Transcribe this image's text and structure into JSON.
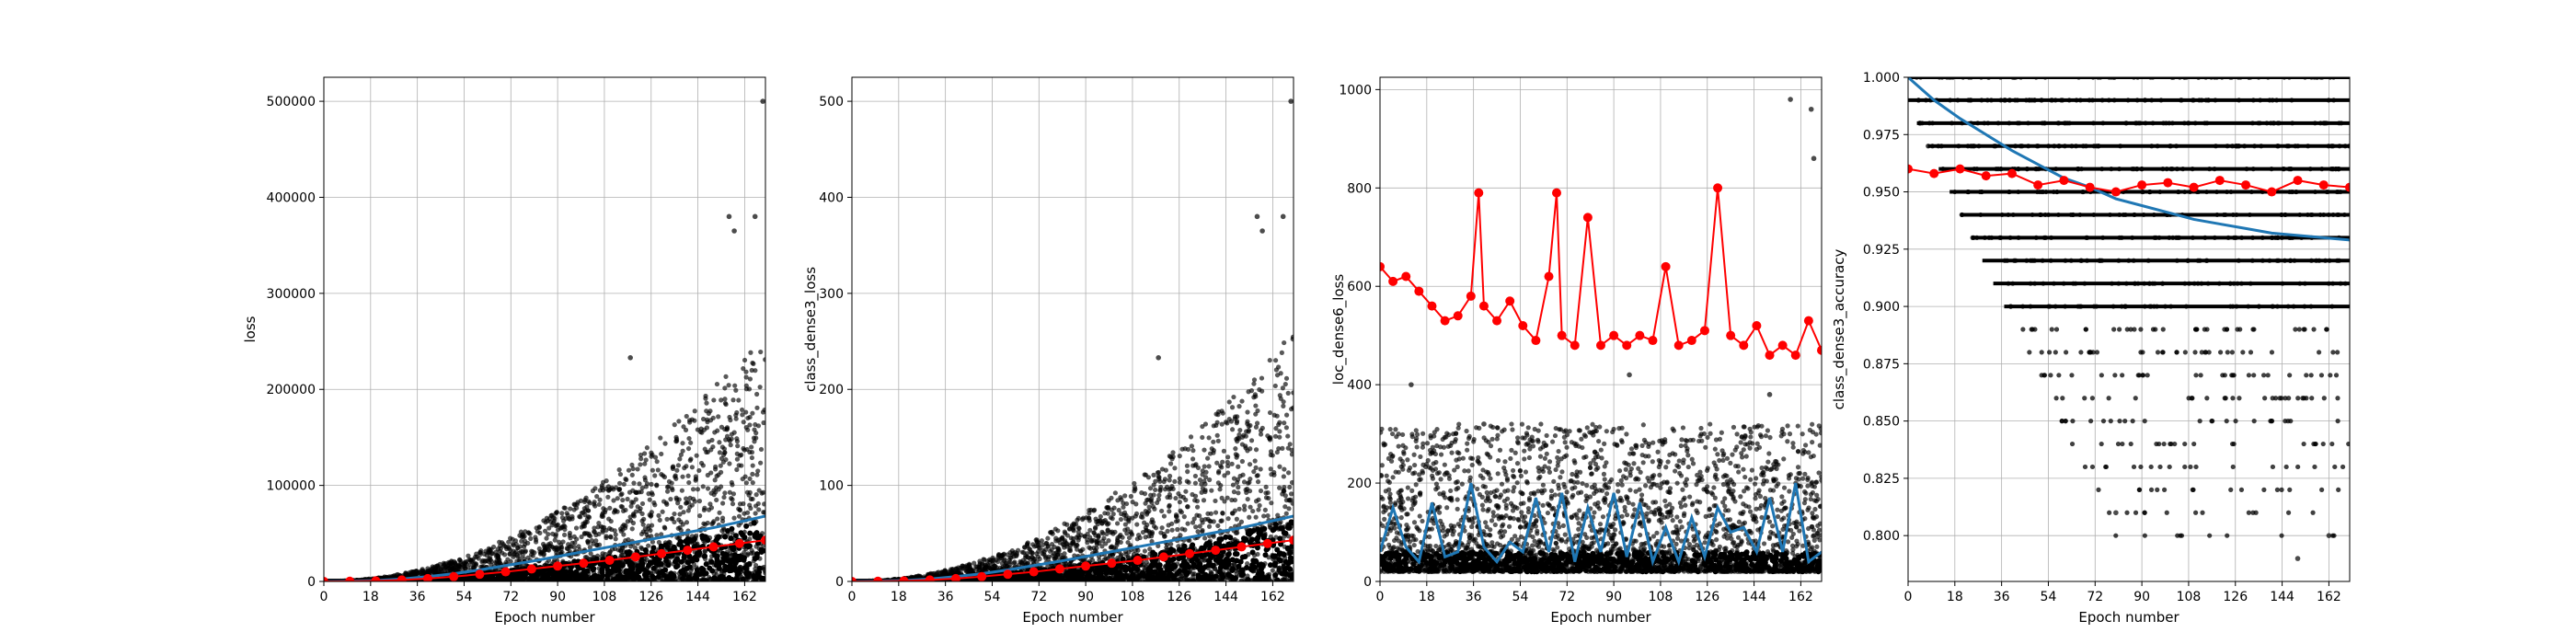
{
  "chart_data": [
    {
      "type": "scatter",
      "id": "loss",
      "xlabel": "Epoch number",
      "ylabel": "loss",
      "xlim": [
        0,
        170
      ],
      "ylim": [
        0,
        525000
      ],
      "xticks": [
        0,
        18,
        36,
        54,
        72,
        90,
        108,
        126,
        144,
        162
      ],
      "yticks": [
        0,
        100000,
        200000,
        300000,
        400000,
        500000
      ],
      "ytick_labels": [
        "0",
        "100000",
        "200000",
        "300000",
        "400000",
        "500000"
      ],
      "grid": true,
      "colors": {
        "scatter": "#000000",
        "blue": "#1f77b4",
        "red": "#ff0000"
      },
      "scatter_model": {
        "form": "quadratic",
        "min": 0,
        "max_end": 260000,
        "epochs": 170
      },
      "outliers": [
        [
          118,
          233000
        ],
        [
          156,
          380000
        ],
        [
          158,
          365000
        ],
        [
          166,
          380000
        ],
        [
          169,
          500000
        ]
      ],
      "series": [
        {
          "color": "#1f77b4",
          "x": [
            0,
            10,
            20,
            30,
            40,
            50,
            60,
            70,
            80,
            90,
            100,
            110,
            120,
            130,
            140,
            150,
            160,
            170
          ],
          "values": [
            0,
            300,
            1000,
            2500,
            5000,
            8000,
            12000,
            16500,
            21000,
            26000,
            31000,
            36000,
            41000,
            46000,
            51000,
            56000,
            62000,
            68000
          ]
        },
        {
          "color": "#ff0000",
          "x": [
            0,
            10,
            20,
            30,
            40,
            50,
            60,
            70,
            80,
            90,
            100,
            110,
            120,
            130,
            140,
            150,
            160,
            170
          ],
          "values": [
            0,
            200,
            600,
            1500,
            3000,
            5000,
            7500,
            10000,
            13000,
            16000,
            19000,
            22000,
            25500,
            29000,
            32500,
            36000,
            39500,
            43000
          ]
        }
      ]
    },
    {
      "type": "scatter",
      "id": "class_dense3_loss",
      "xlabel": "Epoch number",
      "ylabel": "class_dense3_loss",
      "xlim": [
        0,
        170
      ],
      "ylim": [
        0,
        525
      ],
      "xticks": [
        0,
        18,
        36,
        54,
        72,
        90,
        108,
        126,
        144,
        162
      ],
      "yticks": [
        0,
        100,
        200,
        300,
        400,
        500
      ],
      "ytick_labels": [
        "0",
        "100",
        "200",
        "300",
        "400",
        "500"
      ],
      "grid": true,
      "colors": {
        "scatter": "#000000",
        "blue": "#1f77b4",
        "red": "#ff0000"
      },
      "scatter_model": {
        "form": "quadratic",
        "min": 0,
        "max_end": 260,
        "epochs": 170
      },
      "outliers": [
        [
          118,
          233
        ],
        [
          156,
          380
        ],
        [
          158,
          365
        ],
        [
          166,
          380
        ],
        [
          169,
          500
        ]
      ],
      "series": [
        {
          "color": "#1f77b4",
          "x": [
            0,
            10,
            20,
            30,
            40,
            50,
            60,
            70,
            80,
            90,
            100,
            110,
            120,
            130,
            140,
            150,
            160,
            170
          ],
          "values": [
            0,
            0.3,
            1,
            2.5,
            5,
            8,
            12,
            16.5,
            21,
            26,
            31,
            36,
            41,
            46,
            51,
            56,
            62,
            68
          ]
        },
        {
          "color": "#ff0000",
          "x": [
            0,
            10,
            20,
            30,
            40,
            50,
            60,
            70,
            80,
            90,
            100,
            110,
            120,
            130,
            140,
            150,
            160,
            170
          ],
          "values": [
            0,
            0.2,
            0.6,
            1.5,
            3,
            5,
            7.5,
            10,
            13,
            16,
            19,
            22,
            25.5,
            29,
            32.5,
            36,
            39.5,
            43
          ]
        }
      ]
    },
    {
      "type": "scatter",
      "id": "loc_dense6_loss",
      "xlabel": "Epoch number",
      "ylabel": "loc_dense6_loss",
      "xlim": [
        0,
        170
      ],
      "ylim": [
        0,
        1025
      ],
      "xticks": [
        0,
        18,
        36,
        54,
        72,
        90,
        108,
        126,
        144,
        162
      ],
      "yticks": [
        0,
        200,
        400,
        600,
        800,
        1000
      ],
      "ytick_labels": [
        "0",
        "200",
        "400",
        "600",
        "800",
        "1000"
      ],
      "grid": true,
      "colors": {
        "scatter": "#000000",
        "blue": "#1f77b4",
        "red": "#ff0000"
      },
      "scatter_model": {
        "form": "band",
        "min": 20,
        "max_end": 320,
        "epochs": 170
      },
      "outliers": [
        [
          12,
          400
        ],
        [
          40,
          320
        ],
        [
          96,
          420
        ],
        [
          150,
          380
        ],
        [
          158,
          980
        ],
        [
          166,
          960
        ],
        [
          167,
          860
        ]
      ],
      "series": [
        {
          "color": "#1f77b4",
          "x": [
            0,
            5,
            10,
            15,
            20,
            25,
            30,
            35,
            40,
            45,
            50,
            55,
            60,
            65,
            70,
            75,
            80,
            85,
            90,
            95,
            100,
            105,
            110,
            115,
            120,
            125,
            130,
            135,
            140,
            145,
            150,
            155,
            160,
            165,
            170
          ],
          "values": [
            60,
            150,
            70,
            40,
            160,
            50,
            60,
            200,
            70,
            40,
            80,
            60,
            170,
            60,
            180,
            40,
            150,
            60,
            180,
            50,
            160,
            40,
            110,
            40,
            130,
            50,
            150,
            100,
            110,
            60,
            170,
            60,
            200,
            40,
            60
          ]
        },
        {
          "color": "#ff0000",
          "x": [
            0,
            5,
            10,
            15,
            20,
            25,
            30,
            35,
            38,
            40,
            45,
            50,
            55,
            60,
            65,
            68,
            70,
            75,
            80,
            85,
            90,
            95,
            100,
            105,
            110,
            115,
            120,
            125,
            130,
            135,
            140,
            145,
            150,
            155,
            160,
            165,
            170
          ],
          "values": [
            640,
            610,
            620,
            590,
            560,
            530,
            540,
            580,
            790,
            560,
            530,
            570,
            520,
            490,
            620,
            790,
            500,
            480,
            740,
            480,
            500,
            480,
            500,
            490,
            640,
            480,
            490,
            510,
            800,
            500,
            480,
            520,
            460,
            480,
            460,
            530,
            470
          ]
        }
      ]
    },
    {
      "type": "scatter",
      "id": "class_dense3_accuracy",
      "xlabel": "Epoch number",
      "ylabel": "class_dense3_accuracy",
      "xlim": [
        0,
        170
      ],
      "ylim": [
        0.78,
        1.0
      ],
      "xticks": [
        0,
        18,
        36,
        54,
        72,
        90,
        108,
        126,
        144,
        162
      ],
      "yticks": [
        0.8,
        0.825,
        0.85,
        0.875,
        0.9,
        0.925,
        0.95,
        0.975,
        1.0
      ],
      "ytick_labels": [
        "0.800",
        "0.825",
        "0.850",
        "0.875",
        "0.900",
        "0.925",
        "0.950",
        "0.975",
        "1.000"
      ],
      "grid": true,
      "colors": {
        "scatter": "#000000",
        "blue": "#1f77b4",
        "red": "#ff0000"
      },
      "scatter_model": {
        "form": "accuracy",
        "min": 0.8,
        "max_end": 1.0,
        "epochs": 170
      },
      "outliers": [
        [
          80,
          0.81
        ],
        [
          150,
          0.79
        ],
        [
          162,
          0.8
        ]
      ],
      "series": [
        {
          "color": "#1f77b4",
          "x": [
            0,
            10,
            20,
            30,
            40,
            50,
            60,
            70,
            80,
            90,
            100,
            110,
            120,
            130,
            140,
            150,
            160,
            170
          ],
          "values": [
            1.0,
            0.99,
            0.982,
            0.975,
            0.968,
            0.962,
            0.956,
            0.952,
            0.947,
            0.944,
            0.941,
            0.938,
            0.936,
            0.934,
            0.932,
            0.931,
            0.93,
            0.929
          ]
        },
        {
          "color": "#ff0000",
          "x": [
            0,
            10,
            20,
            30,
            40,
            50,
            60,
            70,
            80,
            90,
            100,
            110,
            120,
            130,
            140,
            150,
            160,
            170
          ],
          "values": [
            0.96,
            0.958,
            0.96,
            0.957,
            0.958,
            0.953,
            0.955,
            0.952,
            0.95,
            0.953,
            0.954,
            0.952,
            0.955,
            0.953,
            0.95,
            0.955,
            0.953,
            0.952
          ]
        }
      ]
    }
  ]
}
